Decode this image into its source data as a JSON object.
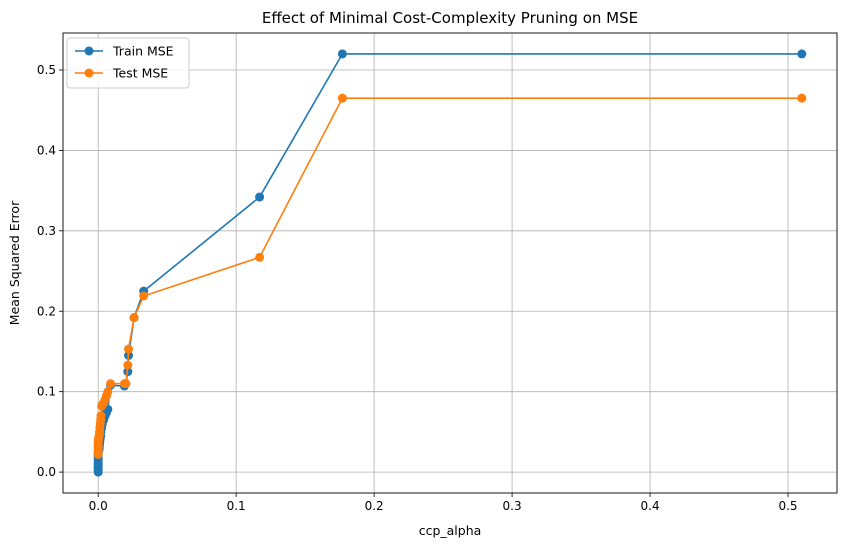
{
  "chart_data": {
    "type": "line",
    "title": "Effect of Minimal Cost-Complexity Pruning on MSE",
    "xlabel": "ccp_alpha",
    "ylabel": "Mean Squared Error",
    "xlim": [
      -0.0255,
      0.5355
    ],
    "ylim": [
      -0.026,
      0.546
    ],
    "x_ticks": [
      0.0,
      0.1,
      0.2,
      0.3,
      0.4,
      0.5
    ],
    "x_tick_labels": [
      "0.0",
      "0.1",
      "0.2",
      "0.3",
      "0.4",
      "0.5"
    ],
    "y_ticks": [
      0.0,
      0.1,
      0.2,
      0.3,
      0.4,
      0.5
    ],
    "y_tick_labels": [
      "0.0",
      "0.1",
      "0.2",
      "0.3",
      "0.4",
      "0.5"
    ],
    "grid": true,
    "legend_position": "top-left",
    "series": [
      {
        "name": "Train MSE",
        "color": "#1f77b4",
        "marker": "circle",
        "x": [
          0.0,
          0.0,
          0.0,
          0.0,
          0.0,
          0.0,
          0.0,
          0.0,
          0.0,
          0.0,
          0.0,
          0.0005,
          0.0008,
          0.001,
          0.0012,
          0.0015,
          0.0018,
          0.002,
          0.0025,
          0.003,
          0.004,
          0.005,
          0.006,
          0.007,
          0.009,
          0.019,
          0.02,
          0.0215,
          0.022,
          0.026,
          0.033,
          0.117,
          0.177,
          0.51
        ],
        "y": [
          0.0,
          0.002,
          0.004,
          0.006,
          0.008,
          0.01,
          0.012,
          0.015,
          0.018,
          0.021,
          0.024,
          0.027,
          0.03,
          0.034,
          0.038,
          0.042,
          0.045,
          0.05,
          0.055,
          0.06,
          0.065,
          0.07,
          0.074,
          0.078,
          0.108,
          0.107,
          0.11,
          0.125,
          0.145,
          0.192,
          0.225,
          0.342,
          0.52,
          0.52
        ]
      },
      {
        "name": "Test MSE",
        "color": "#ff7f0e",
        "marker": "circle",
        "x": [
          0.0,
          0.0,
          0.0,
          0.0,
          0.0,
          0.0,
          0.0,
          0.0005,
          0.0008,
          0.001,
          0.0012,
          0.0015,
          0.0018,
          0.002,
          0.0025,
          0.003,
          0.004,
          0.005,
          0.006,
          0.007,
          0.009,
          0.019,
          0.02,
          0.0215,
          0.022,
          0.026,
          0.033,
          0.117,
          0.177,
          0.51
        ],
        "y": [
          0.022,
          0.025,
          0.028,
          0.031,
          0.034,
          0.037,
          0.04,
          0.043,
          0.046,
          0.05,
          0.055,
          0.06,
          0.065,
          0.07,
          0.082,
          0.084,
          0.086,
          0.09,
          0.095,
          0.1,
          0.11,
          0.11,
          0.11,
          0.133,
          0.153,
          0.192,
          0.219,
          0.267,
          0.465,
          0.465
        ]
      }
    ]
  }
}
